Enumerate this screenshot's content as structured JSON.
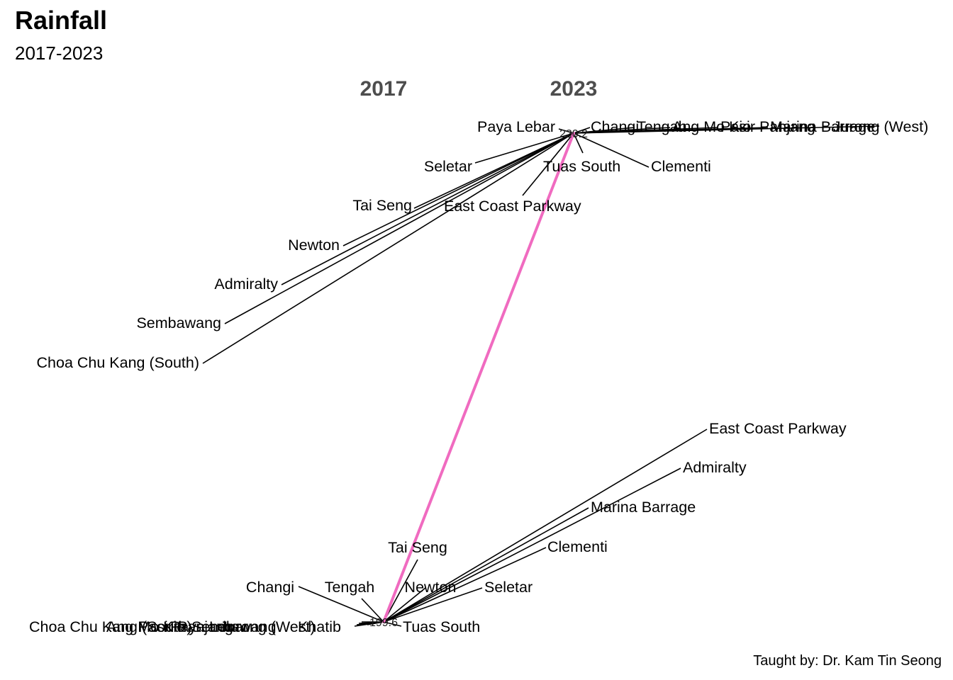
{
  "header": {
    "title": "Rainfall",
    "subtitle": "2017-2023"
  },
  "caption": "Taught by: Dr. Kam Tin Seong",
  "chart_data": {
    "type": "slope",
    "x": [
      "2017",
      "2023"
    ],
    "series": [
      {
        "values": [
          199.6,
          220.2
        ],
        "color": "#f06bc0"
      }
    ],
    "value_labels": [
      "199.6",
      "220.2"
    ],
    "labels_2017_side": [
      "Tai Seng",
      "Changi",
      "Tengah",
      "Newton",
      "Seletar",
      "Tuas South",
      "Clementi",
      "Marina Barrage",
      "Admiralty",
      "East Coast Parkway",
      "Choa Chu Kang (South)",
      "Ang Mo Kio",
      "Pasir Panjang",
      "Jurong (West)",
      "Sembawang",
      "Paya Lebar",
      "Khatib"
    ],
    "labels_2023_side": [
      "Paya Lebar",
      "Changi",
      "Tengah",
      "Ang Mo Kio",
      "Pasir Panjang",
      "Marina Barrage",
      "Jurong (West)",
      "Seletar",
      "Tuas South",
      "Clementi",
      "Tai Seng",
      "East Coast Parkway",
      "Newton",
      "Admiralty",
      "Sembawang",
      "Choa Chu Kang (South)"
    ]
  }
}
